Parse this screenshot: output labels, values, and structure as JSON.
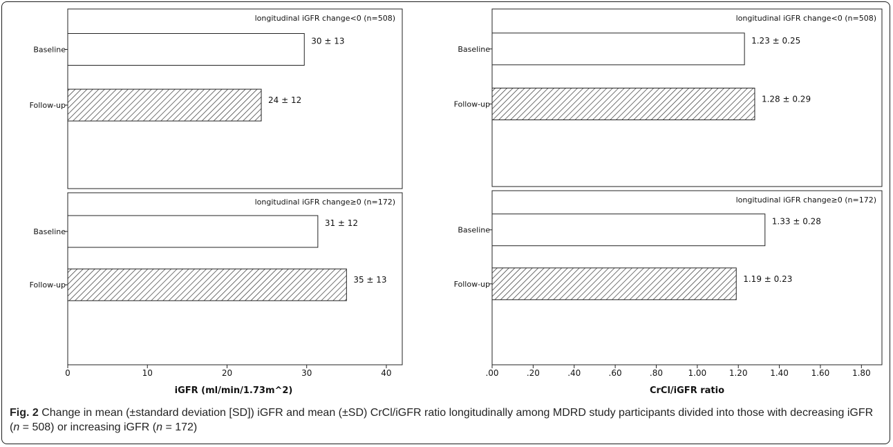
{
  "caption": {
    "label": "Fig. 2",
    "segments": [
      {
        "text": " Change in mean (±standard deviation [SD]) iGFR and mean (±SD) CrCl/iGFR ratio longitudinally among MDRD study participants divided into those with decreasing iGFR (",
        "italic": false
      },
      {
        "text": "n",
        "italic": true
      },
      {
        "text": " = 508) or increasing iGFR (",
        "italic": false
      },
      {
        "text": "n",
        "italic": true
      },
      {
        "text": " = 172)",
        "italic": false
      }
    ]
  },
  "colors": {
    "frame": "#1a1a1a",
    "bar_edge": "#222222",
    "hatch": "#333333",
    "bar_fill": "#ffffff"
  },
  "chart_data": [
    {
      "type": "bar",
      "orientation": "horizontal",
      "xlabel": "iGFR (ml/min/1.73m^2)",
      "xlim": [
        0,
        42
      ],
      "xticks": [
        0,
        10,
        20,
        30,
        40
      ],
      "tick_labels": [
        "0",
        "10",
        "20",
        "30",
        "40"
      ],
      "categories": [
        "Baseline",
        "Follow-up"
      ],
      "panels": [
        {
          "title": "longitudinal iGFR change<0 (n=508)",
          "values": [
            29.7,
            24.3
          ],
          "labels": [
            "30 ± 13",
            "24 ± 12"
          ],
          "hatched": [
            false,
            true
          ]
        },
        {
          "title": "longitudinal iGFR change≥0 (n=172)",
          "values": [
            31.4,
            35.0
          ],
          "labels": [
            "31 ± 12",
            "35 ± 13"
          ],
          "hatched": [
            false,
            true
          ]
        }
      ]
    },
    {
      "type": "bar",
      "orientation": "horizontal",
      "xlabel": "CrCl/iGFR ratio",
      "xlim": [
        0,
        1.9
      ],
      "xticks": [
        0,
        0.2,
        0.4,
        0.6,
        0.8,
        1.0,
        1.2,
        1.4,
        1.6,
        1.8
      ],
      "tick_labels": [
        ".00",
        ".20",
        ".40",
        ".60",
        ".80",
        "1.00",
        "1.20",
        "1.40",
        "1.60",
        "1.80"
      ],
      "categories": [
        "Baseline",
        "Follow-up"
      ],
      "panels": [
        {
          "title": "longitudinal iGFR change<0 (n=508)",
          "values": [
            1.23,
            1.28
          ],
          "labels": [
            "1.23 ± 0.25",
            "1.28 ± 0.29"
          ],
          "hatched": [
            false,
            true
          ]
        },
        {
          "title": "longitudinal iGFR change≥0 (n=172)",
          "values": [
            1.33,
            1.19
          ],
          "labels": [
            "1.33 ± 0.28",
            "1.19 ± 0.23"
          ],
          "hatched": [
            false,
            true
          ]
        }
      ]
    }
  ]
}
